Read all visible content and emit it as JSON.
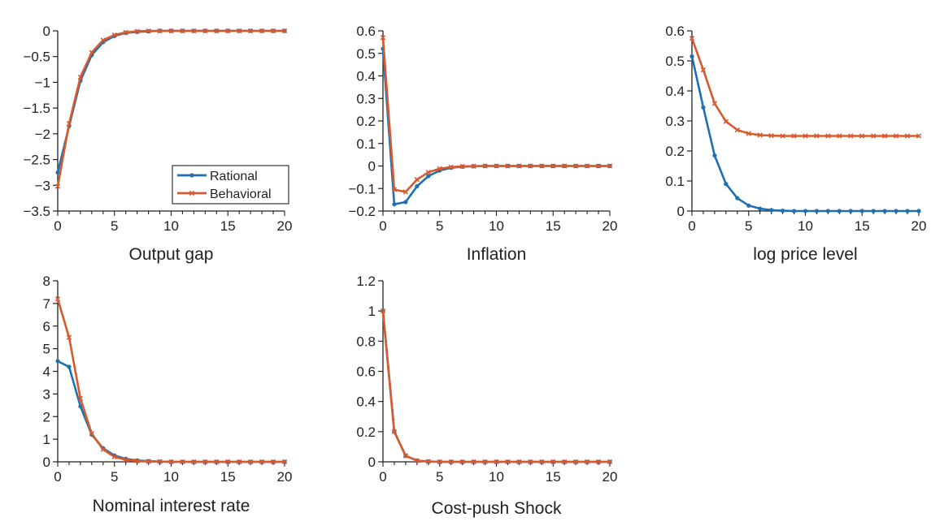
{
  "colors": {
    "rational": "#1f6fb2",
    "behavioral": "#d65a2e",
    "axis": "#231f20"
  },
  "legend": {
    "items": [
      {
        "label": "Rational"
      },
      {
        "label": "Behavioral"
      }
    ]
  },
  "chart_data": [
    {
      "type": "line",
      "title": "Output gap",
      "xlim": [
        0,
        20
      ],
      "ylim": [
        -3.5,
        0
      ],
      "xticks": [
        0,
        5,
        10,
        15,
        20
      ],
      "yticks": [
        0,
        -0.5,
        -1,
        -1.5,
        -2,
        -2.5,
        -3,
        -3.5
      ],
      "ytick_labels": [
        "0",
        "−0.5",
        "−1",
        "−1.5",
        "−2",
        "−2.5",
        "−3",
        "−3.5"
      ],
      "legend_position": "bottom-right",
      "x": [
        0,
        1,
        2,
        3,
        4,
        5,
        6,
        7,
        8,
        9,
        10,
        11,
        12,
        13,
        14,
        15,
        16,
        17,
        18,
        19,
        20
      ],
      "series": [
        {
          "name": "Rational",
          "values": [
            -2.75,
            -1.85,
            -0.97,
            -0.47,
            -0.22,
            -0.1,
            -0.04,
            -0.02,
            -0.01,
            0,
            0,
            0,
            0,
            0,
            0,
            0,
            0,
            0,
            0,
            0,
            0
          ]
        },
        {
          "name": "Behavioral",
          "values": [
            -3.02,
            -1.8,
            -0.9,
            -0.42,
            -0.18,
            -0.08,
            -0.03,
            -0.01,
            0,
            0,
            0,
            0,
            0,
            0,
            0,
            0,
            0,
            0,
            0,
            0,
            0
          ]
        }
      ]
    },
    {
      "type": "line",
      "title": "Inflation",
      "xlim": [
        0,
        20
      ],
      "ylim": [
        -0.2,
        0.6
      ],
      "xticks": [
        0,
        5,
        10,
        15,
        20
      ],
      "yticks": [
        0.6,
        0.5,
        0.4,
        0.3,
        0.2,
        0.1,
        0,
        -0.1,
        -0.2
      ],
      "ytick_labels": [
        "0.6",
        "0.5",
        "0.4",
        "0.3",
        "0.2",
        "0.1",
        "0",
        "−0.1",
        "−0.2"
      ],
      "x": [
        0,
        1,
        2,
        3,
        4,
        5,
        6,
        7,
        8,
        9,
        10,
        11,
        12,
        13,
        14,
        15,
        16,
        17,
        18,
        19,
        20
      ],
      "series": [
        {
          "name": "Rational",
          "values": [
            0.52,
            -0.17,
            -0.16,
            -0.09,
            -0.045,
            -0.02,
            -0.008,
            -0.003,
            -0.001,
            0,
            0,
            0,
            0,
            0,
            0,
            0,
            0,
            0,
            0,
            0,
            0
          ]
        },
        {
          "name": "Behavioral",
          "values": [
            0.57,
            -0.105,
            -0.115,
            -0.06,
            -0.028,
            -0.012,
            -0.005,
            -0.002,
            -0.001,
            0,
            0,
            0,
            0,
            0,
            0,
            0,
            0,
            0,
            0,
            0,
            0
          ]
        }
      ]
    },
    {
      "type": "line",
      "title": "log price level",
      "xlim": [
        0,
        20
      ],
      "ylim": [
        0,
        0.6
      ],
      "xticks": [
        0,
        5,
        10,
        15,
        20
      ],
      "yticks": [
        0.6,
        0.5,
        0.4,
        0.3,
        0.2,
        0.1,
        0
      ],
      "ytick_labels": [
        "0.6",
        "0.5",
        "0.4",
        "0.3",
        "0.2",
        "0.1",
        "0"
      ],
      "x": [
        0,
        1,
        2,
        3,
        4,
        5,
        6,
        7,
        8,
        9,
        10,
        11,
        12,
        13,
        14,
        15,
        16,
        17,
        18,
        19,
        20
      ],
      "series": [
        {
          "name": "Rational",
          "values": [
            0.515,
            0.345,
            0.185,
            0.09,
            0.043,
            0.018,
            0.008,
            0.003,
            0.001,
            0,
            0,
            0,
            0,
            0,
            0,
            0,
            0,
            0,
            0,
            0,
            0
          ]
        },
        {
          "name": "Behavioral",
          "values": [
            0.575,
            0.47,
            0.358,
            0.298,
            0.27,
            0.258,
            0.253,
            0.251,
            0.25,
            0.25,
            0.25,
            0.25,
            0.25,
            0.25,
            0.25,
            0.25,
            0.25,
            0.25,
            0.25,
            0.25,
            0.25
          ]
        }
      ]
    },
    {
      "type": "line",
      "title": "Nominal interest rate",
      "xlim": [
        0,
        20
      ],
      "ylim": [
        0,
        8
      ],
      "xticks": [
        0,
        5,
        10,
        15,
        20
      ],
      "yticks": [
        8,
        7,
        6,
        5,
        4,
        3,
        2,
        1,
        0
      ],
      "ytick_labels": [
        "8",
        "7",
        "6",
        "5",
        "4",
        "3",
        "2",
        "1",
        "0"
      ],
      "x": [
        0,
        1,
        2,
        3,
        4,
        5,
        6,
        7,
        8,
        9,
        10,
        11,
        12,
        13,
        14,
        15,
        16,
        17,
        18,
        19,
        20
      ],
      "series": [
        {
          "name": "Rational",
          "values": [
            4.45,
            4.2,
            2.45,
            1.2,
            0.6,
            0.28,
            0.13,
            0.06,
            0.03,
            0.01,
            0,
            0,
            0,
            0,
            0,
            0,
            0,
            0,
            0,
            0,
            0
          ]
        },
        {
          "name": "Behavioral",
          "values": [
            7.2,
            5.5,
            2.8,
            1.25,
            0.55,
            0.22,
            0.09,
            0.04,
            0.02,
            0.01,
            0,
            0,
            0,
            0,
            0,
            0,
            0,
            0,
            0,
            0,
            0
          ]
        }
      ]
    },
    {
      "type": "line",
      "title": "Cost-push Shock",
      "xlim": [
        0,
        20
      ],
      "ylim": [
        0,
        1.2
      ],
      "xticks": [
        0,
        5,
        10,
        15,
        20
      ],
      "yticks": [
        1.2,
        1,
        0.8,
        0.6,
        0.4,
        0.2,
        0
      ],
      "ytick_labels": [
        "1.2",
        "1",
        "0.8",
        "0.6",
        "0.4",
        "0.2",
        "0"
      ],
      "x": [
        0,
        1,
        2,
        3,
        4,
        5,
        6,
        7,
        8,
        9,
        10,
        11,
        12,
        13,
        14,
        15,
        16,
        17,
        18,
        19,
        20
      ],
      "series": [
        {
          "name": "Rational",
          "values": [
            1,
            0.2,
            0.04,
            0.008,
            0.002,
            0,
            0,
            0,
            0,
            0,
            0,
            0,
            0,
            0,
            0,
            0,
            0,
            0,
            0,
            0,
            0
          ]
        },
        {
          "name": "Behavioral",
          "values": [
            1,
            0.2,
            0.04,
            0.008,
            0.002,
            0,
            0,
            0,
            0,
            0,
            0,
            0,
            0,
            0,
            0,
            0,
            0,
            0,
            0,
            0,
            0
          ]
        }
      ]
    }
  ]
}
